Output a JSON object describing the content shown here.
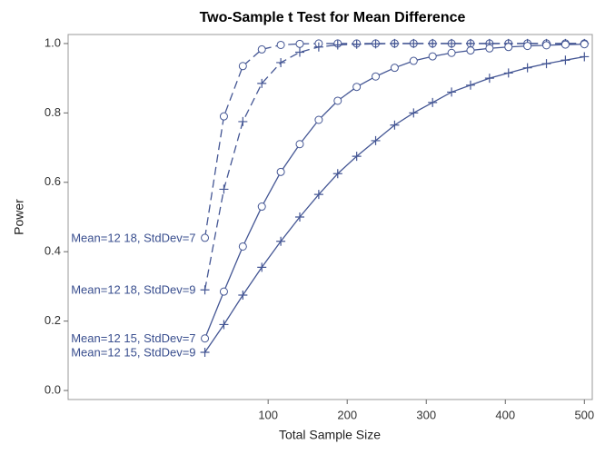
{
  "chart_data": {
    "type": "line",
    "title": "Two-Sample t Test for Mean Difference",
    "x_label": "Total Sample Size",
    "y_label": "Power",
    "x": [
      20,
      44,
      68,
      92,
      116,
      140,
      164,
      188,
      212,
      236,
      260,
      284,
      308,
      332,
      356,
      380,
      404,
      428,
      452,
      476,
      500
    ],
    "series": [
      {
        "name": "Mean=12 18, StdDev=7",
        "color": "#445694",
        "dashed": true,
        "marker": "circle",
        "values": [
          0.44,
          0.79,
          0.935,
          0.983,
          0.996,
          0.999,
          1.0,
          1.0,
          1.0,
          1.0,
          1.0,
          1.0,
          1.0,
          1.0,
          1.0,
          1.0,
          1.0,
          1.0,
          1.0,
          1.0,
          1.0
        ]
      },
      {
        "name": "Mean=12 18, StdDev=9",
        "color": "#445694",
        "dashed": true,
        "marker": "plus",
        "values": [
          0.29,
          0.58,
          0.775,
          0.885,
          0.945,
          0.975,
          0.99,
          0.996,
          0.998,
          0.999,
          1.0,
          1.0,
          1.0,
          1.0,
          1.0,
          1.0,
          1.0,
          1.0,
          1.0,
          1.0,
          1.0
        ]
      },
      {
        "name": "Mean=12 15, StdDev=7",
        "color": "#445694",
        "dashed": false,
        "marker": "circle",
        "values": [
          0.15,
          0.285,
          0.415,
          0.53,
          0.63,
          0.71,
          0.78,
          0.835,
          0.875,
          0.905,
          0.93,
          0.95,
          0.963,
          0.973,
          0.98,
          0.986,
          0.99,
          0.993,
          0.995,
          0.997,
          0.998
        ]
      },
      {
        "name": "Mean=12 15, StdDev=9",
        "color": "#445694",
        "dashed": false,
        "marker": "plus",
        "values": [
          0.11,
          0.19,
          0.275,
          0.355,
          0.43,
          0.5,
          0.565,
          0.625,
          0.675,
          0.72,
          0.765,
          0.8,
          0.83,
          0.86,
          0.88,
          0.9,
          0.915,
          0.93,
          0.942,
          0.952,
          0.962
        ]
      }
    ],
    "xlim": [
      -153,
      510
    ],
    "xticks": [
      100,
      200,
      300,
      400,
      500
    ],
    "ylim": [
      -0.026,
      1.026
    ],
    "yticks": [
      {
        "value": 0,
        "label": "0.0"
      },
      {
        "value": 0.2,
        "label": "0.2"
      },
      {
        "value": 0.4,
        "label": "0.4"
      },
      {
        "value": 0.6,
        "label": "0.6"
      },
      {
        "value": 0.8,
        "label": "0.8"
      },
      {
        "value": 1,
        "label": "1.0"
      }
    ]
  }
}
